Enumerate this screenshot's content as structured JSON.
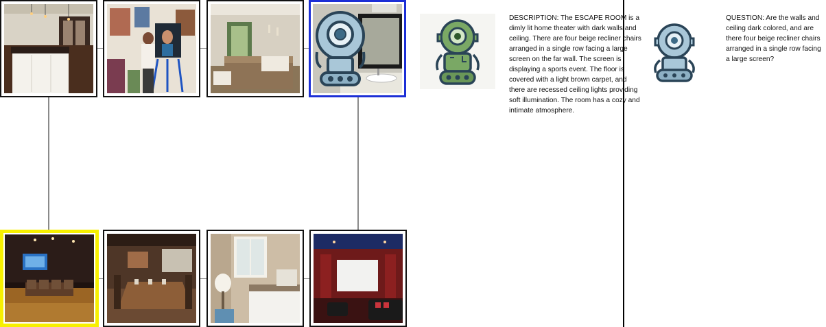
{
  "gallery": {
    "top_row": [
      {
        "icon": "kitchen-photo",
        "selected": false
      },
      {
        "icon": "artist-painting-photo",
        "selected": false
      },
      {
        "icon": "bedroom-photo",
        "selected": false
      },
      {
        "icon": "bathroom-photo-with-robot",
        "selected": true,
        "highlight_color": "#1c2fd6"
      }
    ],
    "bottom_row": [
      {
        "icon": "home-theater-photo",
        "selected": true,
        "highlight_color": "#f7f000"
      },
      {
        "icon": "rustic-dining-room-photo",
        "selected": false
      },
      {
        "icon": "bedroom-window-photo",
        "selected": false
      },
      {
        "icon": "red-theater-room-photo",
        "selected": false
      }
    ]
  },
  "describer": {
    "avatar_icon": "green-robot-icon",
    "description": "DESCRIPTION: The ESCAPE ROOM is a dimly lit home theater with dark walls and ceiling. There are four beige recliner chairs arranged in a single row facing a large screen on the far wall. The screen is displaying a sports event. The floor is covered with a light brown carpet, and there are recessed ceiling lights providing soft illumination. The room has a cozy and intimate atmosphere."
  },
  "asker": {
    "avatar_icon": "blue-robot-icon",
    "question": "QUESTION: Are the walls and ceiling dark colored, and are there four beige recliner chairs arranged in a single row facing a large screen?"
  },
  "colors": {
    "blue_robot": "#a9c7d8",
    "green_robot": "#7aa865",
    "robot_outline": "#2a4457"
  }
}
